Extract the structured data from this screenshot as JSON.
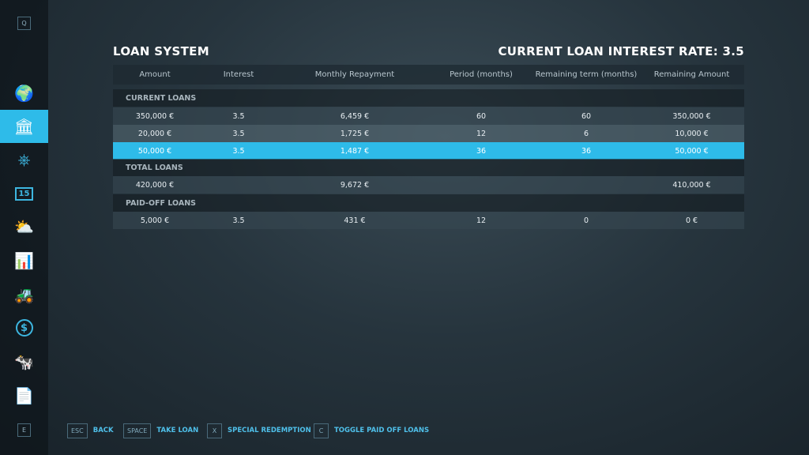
{
  "sidebar": {
    "top_key": "Q",
    "bottom_key": "E",
    "items": [
      {
        "icon": "globe-map-icon",
        "glyph": "🌍"
      },
      {
        "icon": "bank-icon",
        "glyph": "🏛",
        "active": true
      },
      {
        "icon": "steering-wheel-icon",
        "glyph": "⎈"
      },
      {
        "icon": "calendar-icon",
        "glyph": "15"
      },
      {
        "icon": "weather-icon",
        "glyph": "⛅"
      },
      {
        "icon": "statistics-icon",
        "glyph": "📊"
      },
      {
        "icon": "tractor-icon",
        "glyph": "🚜"
      },
      {
        "icon": "dollar-icon",
        "glyph": "$"
      },
      {
        "icon": "cow-icon",
        "glyph": "🐄"
      },
      {
        "icon": "contracts-icon",
        "glyph": "📄"
      }
    ]
  },
  "header": {
    "title": "LOAN SYSTEM",
    "rate_label": "CURRENT LOAN INTEREST RATE: 3.5"
  },
  "table": {
    "columns": [
      "Amount",
      "Interest",
      "Monthly Repayment",
      "Period (months)",
      "Remaining term (months)",
      "Remaining Amount"
    ],
    "current_label": "CURRENT LOANS",
    "current": [
      [
        "350,000 €",
        "3.5",
        "6,459 €",
        "60",
        "60",
        "350,000 €"
      ],
      [
        "20,000 €",
        "3.5",
        "1,725 €",
        "12",
        "6",
        "10,000 €"
      ],
      [
        "50,000 €",
        "3.5",
        "1,487 €",
        "36",
        "36",
        "50,000 €"
      ]
    ],
    "total_label": "TOTAL LOANS",
    "total": [
      "420,000 €",
      "",
      "9,672 €",
      "",
      "",
      "410,000 €"
    ],
    "paid_label": "PAID-OFF LOANS",
    "paid": [
      [
        "5,000 €",
        "3.5",
        "431 €",
        "12",
        "0",
        "0 €"
      ]
    ]
  },
  "footer": [
    {
      "key": "ESC",
      "label": "BACK"
    },
    {
      "key": "SPACE",
      "label": "TAKE LOAN"
    },
    {
      "key": "X",
      "label": "SPECIAL REDEMPTION"
    },
    {
      "key": "C",
      "label": "TOGGLE PAID OFF LOANS"
    }
  ]
}
